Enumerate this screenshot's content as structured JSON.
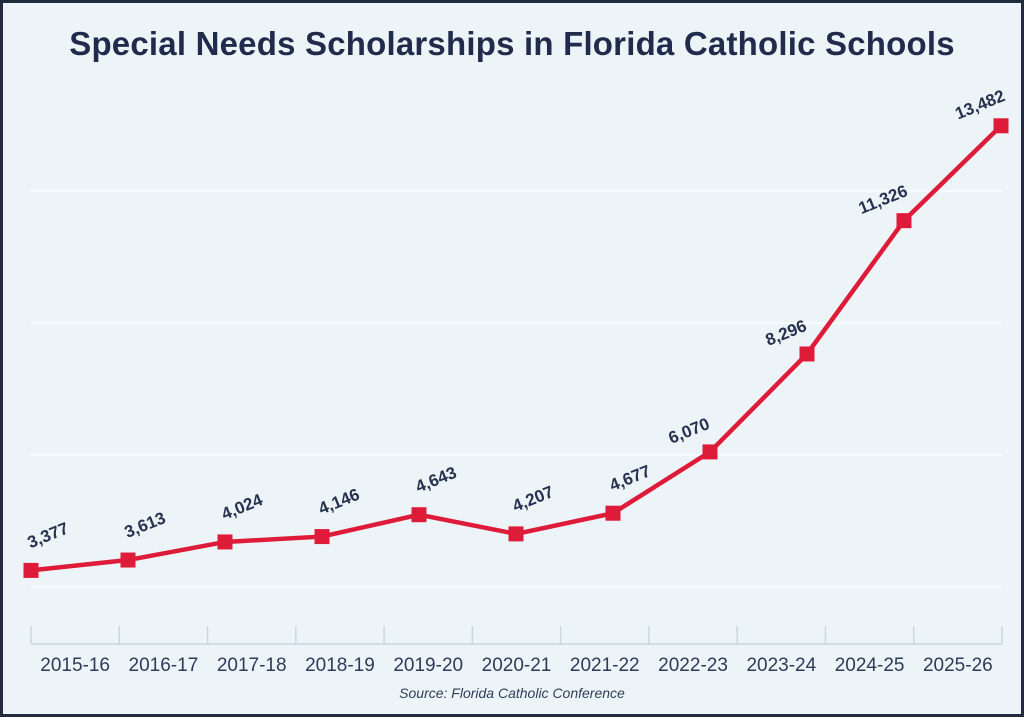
{
  "chart_data": {
    "type": "line",
    "title": "Special Needs Scholarships in Florida Catholic Schools",
    "source": "Source: Florida Catholic Conference",
    "categories": [
      "2015-16",
      "2016-17",
      "2017-18",
      "2018-19",
      "2019-20",
      "2020-21",
      "2021-22",
      "2022-23",
      "2023-24",
      "2024-25",
      "2025-26"
    ],
    "values": [
      3377,
      3613,
      4024,
      4146,
      4643,
      4207,
      4677,
      6070,
      8296,
      11326,
      13482
    ],
    "value_labels": [
      "3,377",
      "3,613",
      "4,024",
      "4,146",
      "4,643",
      "4,207",
      "4,677",
      "6,070",
      "8,296",
      "11,326",
      "13,482"
    ],
    "gridline_values": [
      3000,
      6000,
      9000,
      12000
    ],
    "ylim": [
      1700,
      14800
    ],
    "grid": "horizontal-only",
    "legend_position": "none",
    "marker_shape": "square",
    "xlabel": "",
    "ylabel": ""
  },
  "colors": {
    "background": "#edf4f7",
    "frame_border": "#222c3e",
    "title_text": "#212c4c",
    "value_label_text": "#26324f",
    "axis_label_text": "#2e3b58",
    "line": "#de1b38",
    "marker": "#de1b38",
    "gridline": "#f8fbfd",
    "axis_line": "#c7d8e2",
    "source_text": "#303d59"
  }
}
